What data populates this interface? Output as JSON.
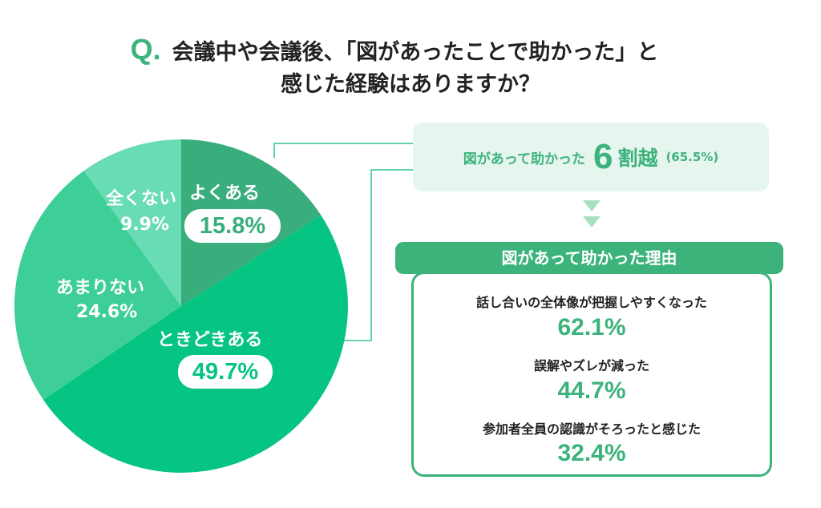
{
  "title": {
    "q": "Q.",
    "line1": "会議中や会議後、「図があったことで助かった」と",
    "line2": "感じた経験はありますか？"
  },
  "colors": {
    "often": "#3aad7c",
    "sometimes": "#06c482",
    "rarely": "#3dcf97",
    "never": "#68dcb4",
    "accent": "#3db37c",
    "connector": "#66d4a6",
    "summary_bg": "#e6f5ee",
    "arrow": "#a9e0c5"
  },
  "chart_data": {
    "type": "pie",
    "categories": [
      "よくある",
      "ときどきある",
      "あまりない",
      "全くない"
    ],
    "values": [
      15.8,
      49.7,
      24.6,
      9.9
    ],
    "labels": [
      "15.8%",
      "49.7%",
      "24.6%",
      "9.9%"
    ],
    "start": "12 o'clock",
    "direction": "clockwise"
  },
  "summary": {
    "prefix": "図があって助かった",
    "big_number": "6",
    "big_suffix": "割越",
    "percent": "(65.5%)"
  },
  "reasons": {
    "header": "図があって助かった理由",
    "items": [
      {
        "label": "話し合いの全体像が把握しやすくなった",
        "value": "62.1%"
      },
      {
        "label": "誤解やズレが減った",
        "value": "44.7%"
      },
      {
        "label": "参加者全員の認識がそろったと感じた",
        "value": "32.4%"
      }
    ]
  }
}
